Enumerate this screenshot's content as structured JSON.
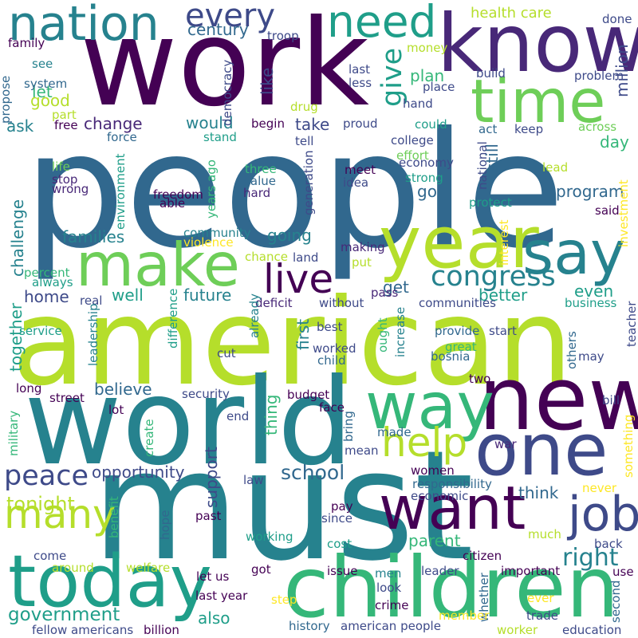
{
  "colors": {
    "dark_purple": "#440154",
    "purple": "#482878",
    "indigo": "#3e4a89",
    "blue": "#31688e",
    "teal_blue": "#26828e",
    "teal": "#1f9e89",
    "green_teal": "#35b779",
    "green": "#6ece58",
    "lime": "#b5de2b",
    "yellow": "#fde725"
  },
  "words": [
    {
      "text": "people",
      "color": "#31688e",
      "vertical": false
    },
    {
      "text": "american",
      "color": "#b5de2b",
      "vertical": false
    },
    {
      "text": "must",
      "color": "#26828e",
      "vertical": false
    },
    {
      "text": "work",
      "color": "#440154",
      "vertical": false
    },
    {
      "text": "world",
      "color": "#26828e",
      "vertical": false
    },
    {
      "text": "children",
      "color": "#35b779",
      "vertical": false
    },
    {
      "text": "know",
      "color": "#482878",
      "vertical": false
    },
    {
      "text": "year",
      "color": "#b5de2b",
      "vertical": false
    },
    {
      "text": "new",
      "color": "#440154",
      "vertical": false
    },
    {
      "text": "one",
      "color": "#3e4a89",
      "vertical": false
    },
    {
      "text": "way",
      "color": "#35b779",
      "vertical": false
    },
    {
      "text": "today",
      "color": "#1f9e89",
      "vertical": false
    },
    {
      "text": "time",
      "color": "#6ece58",
      "vertical": false
    },
    {
      "text": "make",
      "color": "#6ece58",
      "vertical": false
    },
    {
      "text": "say",
      "color": "#26828e",
      "vertical": false
    },
    {
      "text": "want",
      "color": "#440154",
      "vertical": false
    },
    {
      "text": "job",
      "color": "#3e4a89",
      "vertical": false
    },
    {
      "text": "nation",
      "color": "#26828e",
      "vertical": false
    },
    {
      "text": "need",
      "color": "#1f9e89",
      "vertical": false
    },
    {
      "text": "live",
      "color": "#440154",
      "vertical": false
    },
    {
      "text": "many",
      "color": "#b5de2b",
      "vertical": false
    },
    {
      "text": "every",
      "color": "#3e4a89",
      "vertical": false
    },
    {
      "text": "congress",
      "color": "#26828e",
      "vertical": false
    },
    {
      "text": "help",
      "color": "#b5de2b",
      "vertical": false
    },
    {
      "text": "peace",
      "color": "#3e4a89",
      "vertical": false
    },
    {
      "text": "give",
      "color": "#1f9e89",
      "vertical": true
    },
    {
      "text": "government",
      "color": "#1f9e89",
      "vertical": false
    },
    {
      "text": "right",
      "color": "#26828e",
      "vertical": false
    },
    {
      "text": "school",
      "color": "#31688e",
      "vertical": false
    },
    {
      "text": "health care",
      "color": "#b5de2b",
      "vertical": false
    },
    {
      "text": "tonight",
      "color": "#b5de2b",
      "vertical": false
    },
    {
      "text": "opportunity",
      "color": "#3e4a89",
      "vertical": false
    },
    {
      "text": "challenge",
      "color": "#26828e",
      "vertical": true
    },
    {
      "text": "families",
      "color": "#26828e",
      "vertical": false
    },
    {
      "text": "together",
      "color": "#1f9e89",
      "vertical": true
    },
    {
      "text": "plan",
      "color": "#35b779",
      "vertical": false
    },
    {
      "text": "better",
      "color": "#1f9e89",
      "vertical": false
    },
    {
      "text": "going",
      "color": "#26828e",
      "vertical": false
    },
    {
      "text": "future",
      "color": "#26828e",
      "vertical": false
    },
    {
      "text": "also",
      "color": "#1f9e89",
      "vertical": false
    },
    {
      "text": "let",
      "color": "#35b779",
      "vertical": false
    },
    {
      "text": "good",
      "color": "#b5de2b",
      "vertical": false
    },
    {
      "text": "ask",
      "color": "#26828e",
      "vertical": false
    },
    {
      "text": "change",
      "color": "#482878",
      "vertical": false
    },
    {
      "text": "would",
      "color": "#26828e",
      "vertical": false
    },
    {
      "text": "take",
      "color": "#3e4a89",
      "vertical": false
    },
    {
      "text": "still",
      "color": "#31688e",
      "vertical": true
    },
    {
      "text": "go",
      "color": "#31688e",
      "vertical": false
    },
    {
      "text": "get",
      "color": "#31688e",
      "vertical": false
    },
    {
      "text": "well",
      "color": "#1f9e89",
      "vertical": false
    },
    {
      "text": "home",
      "color": "#3e4a89",
      "vertical": false
    },
    {
      "text": "believe",
      "color": "#31688e",
      "vertical": false
    },
    {
      "text": "first",
      "color": "#26828e",
      "vertical": true
    },
    {
      "text": "thing",
      "color": "#35b779",
      "vertical": true
    },
    {
      "text": "support",
      "color": "#3e4a89",
      "vertical": true
    },
    {
      "text": "think",
      "color": "#31688e",
      "vertical": false
    },
    {
      "text": "even",
      "color": "#1f9e89",
      "vertical": false
    },
    {
      "text": "parent",
      "color": "#35b779",
      "vertical": false
    },
    {
      "text": "like",
      "color": "#3e4a89",
      "vertical": true
    },
    {
      "text": "million",
      "color": "#3e4a89",
      "vertical": true
    },
    {
      "text": "day",
      "color": "#35b779",
      "vertical": false
    },
    {
      "text": "program",
      "color": "#31688e",
      "vertical": false
    },
    {
      "text": "century",
      "color": "#31688e",
      "vertical": false
    },
    {
      "text": "family",
      "color": "#440154",
      "vertical": false
    },
    {
      "text": "see",
      "color": "#26828e",
      "vertical": false
    },
    {
      "text": "system",
      "color": "#31688e",
      "vertical": false
    },
    {
      "text": "propose",
      "color": "#31688e",
      "vertical": true
    },
    {
      "text": "part",
      "color": "#b5de2b",
      "vertical": false
    },
    {
      "text": "free",
      "color": "#440154",
      "vertical": false
    },
    {
      "text": "troop",
      "color": "#3e4a89",
      "vertical": false
    },
    {
      "text": "democracy",
      "color": "#3e4a89",
      "vertical": true
    },
    {
      "text": "money",
      "color": "#b5de2b",
      "vertical": false
    },
    {
      "text": "last",
      "color": "#3e4a89",
      "vertical": false
    },
    {
      "text": "less",
      "color": "#3e4a89",
      "vertical": false
    },
    {
      "text": "place",
      "color": "#3e4a89",
      "vertical": false
    },
    {
      "text": "build",
      "color": "#3e4a89",
      "vertical": false
    },
    {
      "text": "problem",
      "color": "#3e4a89",
      "vertical": false
    },
    {
      "text": "done",
      "color": "#3e4a89",
      "vertical": false
    },
    {
      "text": "drug",
      "color": "#b5de2b",
      "vertical": false
    },
    {
      "text": "hand",
      "color": "#3e4a89",
      "vertical": false
    },
    {
      "text": "begin",
      "color": "#440154",
      "vertical": false
    },
    {
      "text": "proud",
      "color": "#3e4a89",
      "vertical": false
    },
    {
      "text": "could",
      "color": "#1f9e89",
      "vertical": false
    },
    {
      "text": "act",
      "color": "#31688e",
      "vertical": false
    },
    {
      "text": "keep",
      "color": "#3e4a89",
      "vertical": false
    },
    {
      "text": "across",
      "color": "#6ece58",
      "vertical": false
    },
    {
      "text": "force",
      "color": "#31688e",
      "vertical": false
    },
    {
      "text": "stand",
      "color": "#1f9e89",
      "vertical": false
    },
    {
      "text": "tell",
      "color": "#3e4a89",
      "vertical": false
    },
    {
      "text": "college",
      "color": "#3e4a89",
      "vertical": false
    },
    {
      "text": "effort",
      "color": "#6ece58",
      "vertical": false
    },
    {
      "text": "economy",
      "color": "#3e4a89",
      "vertical": false
    },
    {
      "text": "national",
      "color": "#3e4a89",
      "vertical": true
    },
    {
      "text": "lead",
      "color": "#b5de2b",
      "vertical": false
    },
    {
      "text": "life",
      "color": "#6ece58",
      "vertical": false
    },
    {
      "text": "stop",
      "color": "#482878",
      "vertical": false
    },
    {
      "text": "wrong",
      "color": "#482878",
      "vertical": false
    },
    {
      "text": "environment",
      "color": "#1f9e89",
      "vertical": true
    },
    {
      "text": "three",
      "color": "#35b779",
      "vertical": false
    },
    {
      "text": "value",
      "color": "#31688e",
      "vertical": false
    },
    {
      "text": "hard",
      "color": "#482878",
      "vertical": false
    },
    {
      "text": "meet",
      "color": "#440154",
      "vertical": false
    },
    {
      "text": "idea",
      "color": "#3e4a89",
      "vertical": false
    },
    {
      "text": "strong",
      "color": "#1f9e89",
      "vertical": false
    },
    {
      "text": "protect",
      "color": "#1f9e89",
      "vertical": false
    },
    {
      "text": "freedom",
      "color": "#440154",
      "vertical": false
    },
    {
      "text": "able",
      "color": "#440154",
      "vertical": false
    },
    {
      "text": "years ago",
      "color": "#35b779",
      "vertical": true
    },
    {
      "text": "generation",
      "color": "#3e4a89",
      "vertical": true
    },
    {
      "text": "said",
      "color": "#440154",
      "vertical": false
    },
    {
      "text": "investment",
      "color": "#fde725",
      "vertical": true
    },
    {
      "text": "community",
      "color": "#26828e",
      "vertical": false
    },
    {
      "text": "violence",
      "color": "#fde725",
      "vertical": false
    },
    {
      "text": "chance",
      "color": "#b5de2b",
      "vertical": false
    },
    {
      "text": "land",
      "color": "#3e4a89",
      "vertical": false
    },
    {
      "text": "making",
      "color": "#482878",
      "vertical": false
    },
    {
      "text": "put",
      "color": "#b5de2b",
      "vertical": false
    },
    {
      "text": "interest",
      "color": "#fde725",
      "vertical": true
    },
    {
      "text": "percent",
      "color": "#35b779",
      "vertical": false
    },
    {
      "text": "always",
      "color": "#1f9e89",
      "vertical": false
    },
    {
      "text": "real",
      "color": "#3e4a89",
      "vertical": false
    },
    {
      "text": "deficit",
      "color": "#482878",
      "vertical": false
    },
    {
      "text": "without",
      "color": "#3e4a89",
      "vertical": false
    },
    {
      "text": "pass",
      "color": "#482878",
      "vertical": false
    },
    {
      "text": "communities",
      "color": "#3e4a89",
      "vertical": false
    },
    {
      "text": "business",
      "color": "#1f9e89",
      "vertical": false
    },
    {
      "text": "leadership",
      "color": "#26828e",
      "vertical": true
    },
    {
      "text": "difference",
      "color": "#1f9e89",
      "vertical": true
    },
    {
      "text": "best",
      "color": "#3e4a89",
      "vertical": false
    },
    {
      "text": "ought",
      "color": "#35b779",
      "vertical": true
    },
    {
      "text": "provide",
      "color": "#31688e",
      "vertical": false
    },
    {
      "text": "start",
      "color": "#3e4a89",
      "vertical": false
    },
    {
      "text": "teacher",
      "color": "#3e4a89",
      "vertical": true
    },
    {
      "text": "service",
      "color": "#1f9e89",
      "vertical": false
    },
    {
      "text": "cut",
      "color": "#3e4a89",
      "vertical": false
    },
    {
      "text": "already",
      "color": "#26828e",
      "vertical": true
    },
    {
      "text": "worked",
      "color": "#3e4a89",
      "vertical": false
    },
    {
      "text": "child",
      "color": "#31688e",
      "vertical": false
    },
    {
      "text": "increase",
      "color": "#26828e",
      "vertical": true
    },
    {
      "text": "great",
      "color": "#35b779",
      "vertical": false
    },
    {
      "text": "bosnia",
      "color": "#31688e",
      "vertical": false
    },
    {
      "text": "may",
      "color": "#3e4a89",
      "vertical": false
    },
    {
      "text": "others",
      "color": "#31688e",
      "vertical": true
    },
    {
      "text": "two",
      "color": "#440154",
      "vertical": false
    },
    {
      "text": "long",
      "color": "#440154",
      "vertical": false
    },
    {
      "text": "street",
      "color": "#440154",
      "vertical": false
    },
    {
      "text": "security",
      "color": "#3e4a89",
      "vertical": false
    },
    {
      "text": "budget",
      "color": "#440154",
      "vertical": false
    },
    {
      "text": "face",
      "color": "#440154",
      "vertical": false
    },
    {
      "text": "bill",
      "color": "#3e4a89",
      "vertical": false
    },
    {
      "text": "military",
      "color": "#35b779",
      "vertical": true
    },
    {
      "text": "end",
      "color": "#3e4a89",
      "vertical": false
    },
    {
      "text": "bring",
      "color": "#31688e",
      "vertical": true
    },
    {
      "text": "made",
      "color": "#31688e",
      "vertical": false
    },
    {
      "text": "lot",
      "color": "#440154",
      "vertical": false
    },
    {
      "text": "create",
      "color": "#35b779",
      "vertical": true
    },
    {
      "text": "mean",
      "color": "#3e4a89",
      "vertical": false
    },
    {
      "text": "war",
      "color": "#482878",
      "vertical": false
    },
    {
      "text": "something",
      "color": "#fde725",
      "vertical": true
    },
    {
      "text": "women",
      "color": "#440154",
      "vertical": false
    },
    {
      "text": "law",
      "color": "#3e4a89",
      "vertical": false
    },
    {
      "text": "responsibility",
      "color": "#31688e",
      "vertical": false
    },
    {
      "text": "economic",
      "color": "#3e4a89",
      "vertical": false
    },
    {
      "text": "never",
      "color": "#fde725",
      "vertical": false
    },
    {
      "text": "benefit",
      "color": "#35b779",
      "vertical": true
    },
    {
      "text": "hope",
      "color": "#31688e",
      "vertical": true
    },
    {
      "text": "past",
      "color": "#440154",
      "vertical": false
    },
    {
      "text": "pay",
      "color": "#440154",
      "vertical": false
    },
    {
      "text": "since",
      "color": "#3e4a89",
      "vertical": false
    },
    {
      "text": "working",
      "color": "#1f9e89",
      "vertical": false
    },
    {
      "text": "cost",
      "color": "#1f9e89",
      "vertical": false
    },
    {
      "text": "much",
      "color": "#b5de2b",
      "vertical": false
    },
    {
      "text": "come",
      "color": "#3e4a89",
      "vertical": false
    },
    {
      "text": "citizen",
      "color": "#440154",
      "vertical": false
    },
    {
      "text": "back",
      "color": "#3e4a89",
      "vertical": false
    },
    {
      "text": "around",
      "color": "#b5de2b",
      "vertical": false
    },
    {
      "text": "welfare",
      "color": "#b5de2b",
      "vertical": false
    },
    {
      "text": "got",
      "color": "#440154",
      "vertical": false
    },
    {
      "text": "issue",
      "color": "#440154",
      "vertical": false
    },
    {
      "text": "men",
      "color": "#26828e",
      "vertical": false
    },
    {
      "text": "leader",
      "color": "#3e4a89",
      "vertical": false
    },
    {
      "text": "important",
      "color": "#440154",
      "vertical": false
    },
    {
      "text": "use",
      "color": "#440154",
      "vertical": false
    },
    {
      "text": "let us",
      "color": "#440154",
      "vertical": false
    },
    {
      "text": "last year",
      "color": "#440154",
      "vertical": false
    },
    {
      "text": "step",
      "color": "#fde725",
      "vertical": false
    },
    {
      "text": "look",
      "color": "#3e4a89",
      "vertical": false
    },
    {
      "text": "crime",
      "color": "#440154",
      "vertical": false
    },
    {
      "text": "whether",
      "color": "#31688e",
      "vertical": true
    },
    {
      "text": "ever",
      "color": "#fde725",
      "vertical": false
    },
    {
      "text": "second",
      "color": "#31688e",
      "vertical": true
    },
    {
      "text": "member",
      "color": "#fde725",
      "vertical": false
    },
    {
      "text": "trade",
      "color": "#3e4a89",
      "vertical": false
    },
    {
      "text": "fellow americans",
      "color": "#3e4a89",
      "vertical": false
    },
    {
      "text": "billion",
      "color": "#440154",
      "vertical": false
    },
    {
      "text": "history",
      "color": "#31688e",
      "vertical": false
    },
    {
      "text": "american people",
      "color": "#3e4a89",
      "vertical": false
    },
    {
      "text": "worker",
      "color": "#b5de2b",
      "vertical": false
    },
    {
      "text": "education",
      "color": "#3e4a89",
      "vertical": false
    }
  ]
}
